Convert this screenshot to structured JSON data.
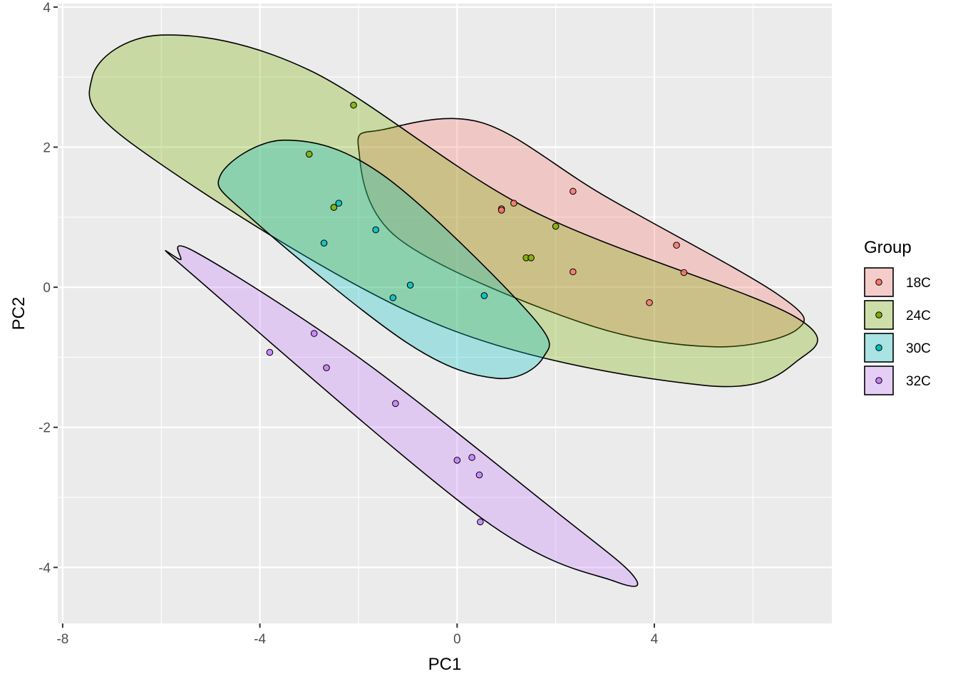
{
  "chart_data": {
    "type": "scatter",
    "title": "",
    "xlabel": "PC1",
    "ylabel": "PC2",
    "xlim": [
      -8.1,
      7.6
    ],
    "ylim": [
      -4.8,
      4.05
    ],
    "x_ticks": [
      -8,
      -4,
      0,
      4
    ],
    "x_tick_labels": [
      "-8",
      "-4",
      "0",
      "4"
    ],
    "y_ticks": [
      -4,
      -2,
      0,
      2,
      4
    ],
    "y_tick_labels": [
      "-4",
      "-2",
      "0",
      "2",
      "4"
    ],
    "grid": true,
    "background": "#ebebeb",
    "legend": {
      "title": "Group",
      "position": "right"
    },
    "series": [
      {
        "name": "18C",
        "color": "#F8766D",
        "points": [
          [
            0.9,
            1.12
          ],
          [
            0.9,
            1.1
          ],
          [
            1.15,
            1.2
          ],
          [
            2.35,
            1.37
          ],
          [
            2.35,
            0.22
          ],
          [
            3.9,
            -0.22
          ],
          [
            4.45,
            0.6
          ],
          [
            4.6,
            0.21
          ]
        ],
        "ellipse": [
          [
            -2.0,
            2.0
          ],
          [
            -1.5,
            2.25
          ],
          [
            0.5,
            2.35
          ],
          [
            3.0,
            1.3
          ],
          [
            6.5,
            -0.1
          ],
          [
            6.9,
            -0.6
          ],
          [
            5.2,
            -0.85
          ],
          [
            2.5,
            -0.5
          ],
          [
            -1.2,
            0.7
          ]
        ]
      },
      {
        "name": "24C",
        "color": "#7CAE00",
        "points": [
          [
            -2.1,
            2.6
          ],
          [
            -3.0,
            1.9
          ],
          [
            -2.5,
            1.14
          ],
          [
            1.4,
            0.42
          ],
          [
            1.5,
            0.42
          ],
          [
            2.0,
            0.87
          ]
        ],
        "ellipse": [
          [
            -7.4,
            3.0
          ],
          [
            -6.0,
            3.6
          ],
          [
            -3.0,
            3.1
          ],
          [
            1.5,
            1.1
          ],
          [
            6.8,
            -0.4
          ],
          [
            6.9,
            -1.05
          ],
          [
            5.0,
            -1.4
          ],
          [
            -0.5,
            -0.5
          ],
          [
            -6.5,
            2.0
          ]
        ]
      },
      {
        "name": "30C",
        "color": "#00BFC4",
        "points": [
          [
            -2.4,
            1.2
          ],
          [
            -1.65,
            0.82
          ],
          [
            -2.7,
            0.63
          ],
          [
            -0.95,
            0.03
          ],
          [
            -1.3,
            -0.15
          ],
          [
            0.55,
            -0.12
          ]
        ],
        "ellipse": [
          [
            -4.8,
            1.6
          ],
          [
            -3.5,
            2.1
          ],
          [
            -1.5,
            1.6
          ],
          [
            1.5,
            -0.4
          ],
          [
            1.75,
            -1.0
          ],
          [
            0.8,
            -1.3
          ],
          [
            -1.0,
            -0.8
          ],
          [
            -4.2,
            1.0
          ]
        ]
      },
      {
        "name": "32C",
        "color": "#C77CFF",
        "points": [
          [
            -3.8,
            -0.93
          ],
          [
            -2.9,
            -0.66
          ],
          [
            -2.65,
            -1.15
          ],
          [
            -1.25,
            -1.66
          ],
          [
            0.3,
            -2.43
          ],
          [
            0.0,
            -2.47
          ],
          [
            0.45,
            -2.68
          ],
          [
            0.47,
            -3.35
          ]
        ],
        "ellipse": [
          [
            -5.6,
            0.4
          ],
          [
            -5.3,
            0.5
          ],
          [
            -2.0,
            -1.0
          ],
          [
            2.0,
            -3.2
          ],
          [
            3.55,
            -4.1
          ],
          [
            3.2,
            -4.2
          ],
          [
            0.5,
            -3.3
          ],
          [
            -5.4,
            0.2
          ]
        ]
      }
    ]
  }
}
